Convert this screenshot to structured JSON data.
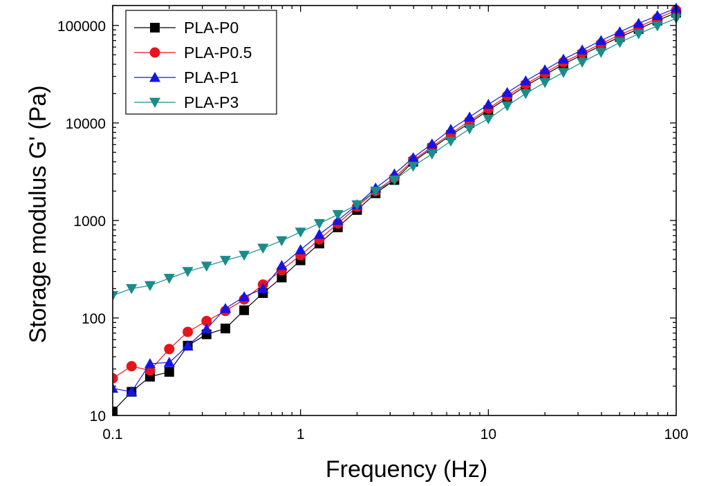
{
  "chart_data": {
    "type": "line",
    "xscale": "log",
    "yscale": "log",
    "xlabel": "Frequency (Hz)",
    "ylabel": "Storage modulus G' (Pa)",
    "xlim": [
      0.1,
      100
    ],
    "ylim": [
      10,
      160000
    ],
    "xticks": [
      {
        "value": 0.1,
        "label": "0.1"
      },
      {
        "value": 1,
        "label": "1"
      },
      {
        "value": 10,
        "label": "10"
      },
      {
        "value": 100,
        "label": "100"
      }
    ],
    "yticks": [
      {
        "value": 10,
        "label": "10"
      },
      {
        "value": 100,
        "label": "100"
      },
      {
        "value": 1000,
        "label": "1000"
      },
      {
        "value": 10000,
        "label": "10000"
      },
      {
        "value": 100000,
        "label": "100000"
      }
    ],
    "legend_position": "top-left",
    "x": [
      0.1,
      0.126,
      0.158,
      0.2,
      0.251,
      0.316,
      0.398,
      0.501,
      0.631,
      0.794,
      1,
      1.26,
      1.58,
      2,
      2.51,
      3.16,
      3.98,
      5.01,
      6.31,
      7.94,
      10,
      12.6,
      15.8,
      20,
      25.1,
      31.6,
      39.8,
      50.1,
      63.1,
      79.4,
      100
    ],
    "series": [
      {
        "name": "PLA-P0",
        "color": "#000000",
        "marker": "square",
        "values": [
          11,
          17.5,
          25,
          28,
          52,
          68,
          78,
          120,
          180,
          260,
          390,
          580,
          850,
          1280,
          1900,
          2600,
          4000,
          5500,
          7500,
          10000,
          13500,
          18000,
          24000,
          31000,
          40000,
          50000,
          62000,
          76000,
          92000,
          112000,
          135000
        ]
      },
      {
        "name": "PLA-P0.5",
        "color": "#e8141b",
        "marker": "circle",
        "values": [
          24,
          32,
          29,
          48,
          72,
          93,
          118,
          155,
          220,
          310,
          440,
          640,
          930,
          1380,
          2000,
          2750,
          4150,
          5700,
          7800,
          10500,
          14000,
          19000,
          25000,
          32500,
          42000,
          52000,
          65000,
          80000,
          97000,
          118000,
          143000
        ]
      },
      {
        "name": "PLA-P1",
        "color": "#1414e8",
        "marker": "triangle-up",
        "values": [
          19,
          17.5,
          34,
          35,
          52,
          77,
          125,
          165,
          200,
          345,
          500,
          720,
          1000,
          1450,
          2150,
          3000,
          4400,
          6100,
          8600,
          11500,
          15500,
          20500,
          27000,
          35000,
          45000,
          56000,
          70000,
          86000,
          105000,
          126000,
          150000
        ]
      },
      {
        "name": "PLA-P3",
        "color": "#1a8c8a",
        "marker": "triangle-down",
        "values": [
          170,
          200,
          215,
          255,
          300,
          340,
          390,
          440,
          520,
          620,
          760,
          930,
          1150,
          1450,
          2000,
          2600,
          3600,
          4800,
          6500,
          8700,
          11000,
          15000,
          20000,
          26000,
          33000,
          42000,
          53000,
          67000,
          82000,
          99000,
          118000
        ]
      }
    ]
  }
}
